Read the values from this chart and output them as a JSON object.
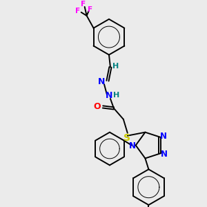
{
  "bg_color": "#ebebeb",
  "atom_colors": {
    "C": "#000000",
    "H": "#008080",
    "N": "#0000FF",
    "O": "#FF0000",
    "S": "#cccc00",
    "F": "#FF00FF"
  },
  "bond_color": "#000000",
  "bond_width": 1.4
}
